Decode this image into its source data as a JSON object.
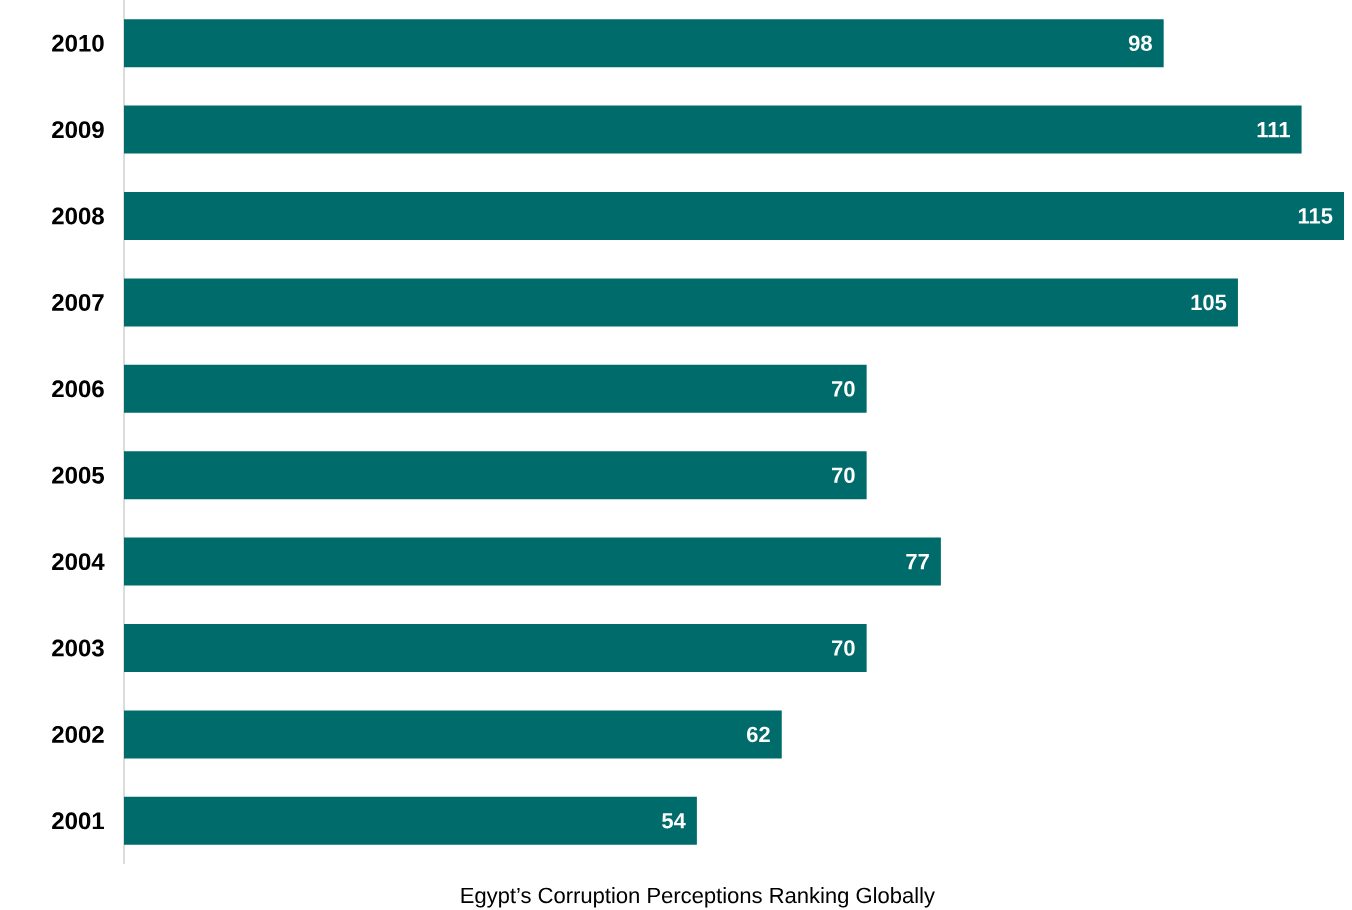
{
  "chart_data": {
    "type": "bar",
    "orientation": "horizontal",
    "xlabel": "Egypt’s Corruption Perceptions Ranking Globally",
    "categories": [
      "2010",
      "2009",
      "2008",
      "2007",
      "2006",
      "2005",
      "2004",
      "2003",
      "2002",
      "2001"
    ],
    "values": [
      98,
      111,
      115,
      105,
      70,
      70,
      77,
      70,
      62,
      54
    ],
    "color": "#006b6b",
    "data_labels": true
  }
}
